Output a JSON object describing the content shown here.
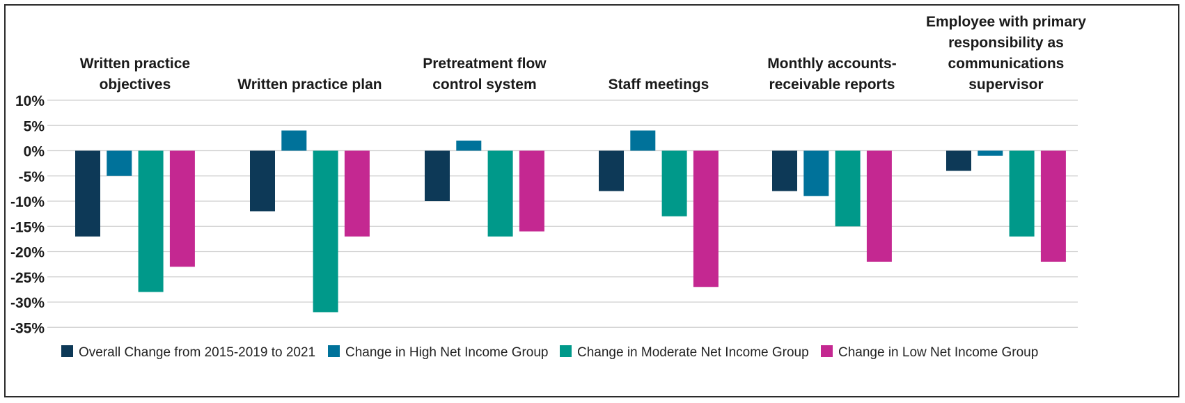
{
  "chart_data": {
    "type": "bar",
    "categories": [
      [
        "Written practice",
        "objectives"
      ],
      [
        "Written practice plan"
      ],
      [
        "Pretreatment flow",
        "control system"
      ],
      [
        "Staff meetings"
      ],
      [
        "Monthly accounts-",
        "receivable reports"
      ],
      [
        "Employee with primary",
        "responsibility as",
        "communications",
        "supervisor"
      ]
    ],
    "series": [
      {
        "name": "Overall Change from 2015-2019 to 2021",
        "color": "#0d3957",
        "values": [
          -17,
          -12,
          -10,
          -8,
          -8,
          -4
        ]
      },
      {
        "name": "Change in High Net Income Group",
        "color": "#00729a",
        "values": [
          -5,
          4,
          2,
          4,
          -9,
          -1
        ]
      },
      {
        "name": "Change in Moderate Net Income Group",
        "color": "#00998a",
        "values": [
          -28,
          -32,
          -17,
          -13,
          -15,
          -17
        ]
      },
      {
        "name": "Change in Low Net Income Group",
        "color": "#c42891",
        "values": [
          -23,
          -17,
          -16,
          -27,
          -22,
          -22
        ]
      }
    ],
    "yticks": [
      10,
      5,
      0,
      -5,
      -10,
      -15,
      -20,
      -25,
      -30,
      -35
    ],
    "ytick_labels": [
      "10%",
      "5%",
      "0%",
      "-5%",
      "-10%",
      "-15%",
      "-20%",
      "-25%",
      "-30%",
      "-35%"
    ],
    "ylim": [
      -35,
      10
    ],
    "grid": true,
    "legend_position": "bottom"
  }
}
